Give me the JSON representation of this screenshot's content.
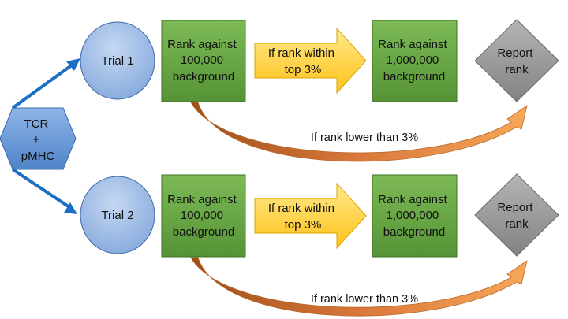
{
  "start": {
    "label": [
      "TCR",
      "+",
      "pMHC"
    ]
  },
  "rows": [
    {
      "trial": "Trial 1",
      "rank_small": [
        "Rank against",
        "100,000",
        "background"
      ],
      "condition": [
        "If rank within",
        "top 3%"
      ],
      "rank_large": [
        "Rank against",
        "1,000,000",
        "background"
      ],
      "report": [
        "Report",
        "rank"
      ],
      "bypass": "If rank lower than 3%"
    },
    {
      "trial": "Trial 2",
      "rank_small": [
        "Rank against",
        "100,000",
        "background"
      ],
      "condition": [
        "If rank within",
        "top 3%"
      ],
      "rank_large": [
        "Rank against",
        "1,000,000",
        "background"
      ],
      "report": [
        "Report",
        "rank"
      ],
      "bypass": "If rank lower than 3%"
    }
  ],
  "colors": {
    "hexagon": "#6f9fd8",
    "circle": "#9dbce6",
    "rank_box": "#68a545",
    "condition_arrow": "#ffd23c",
    "report_diamond": "#9a9a9a",
    "connector": "#1a6fc4",
    "bypass_arrow_start": "#a0521c",
    "bypass_arrow_end": "#f5a050"
  }
}
